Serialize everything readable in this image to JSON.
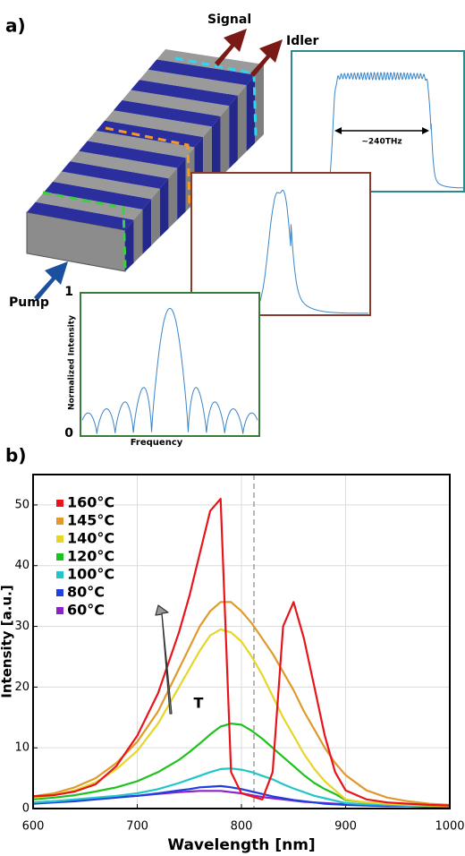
{
  "panel_a": {
    "label": "a)",
    "signal": "Signal",
    "idler": "Idler",
    "pump": "Pump",
    "bandwidth_label": "~240THz",
    "inset_ylabel": "Normalized Intensity",
    "inset_xlabel": "Frequency",
    "inset_ytick_top": "1",
    "inset_ytick_bottom": "0"
  },
  "panel_b_label": "b)",
  "chart_data": {
    "type": "line",
    "xlabel": "Wavelength [nm]",
    "ylabel": "Intensity [a.u.]",
    "x": [
      600,
      620,
      640,
      660,
      680,
      700,
      720,
      740,
      750,
      760,
      770,
      780,
      790,
      800,
      810,
      820,
      830,
      840,
      850,
      860,
      870,
      880,
      890,
      900,
      920,
      940,
      960,
      980,
      1000
    ],
    "series": [
      {
        "name": "160°C",
        "color": "#e8141b",
        "values": [
          2,
          2.2,
          2.8,
          4,
          7,
          12,
          19,
          29,
          35,
          42,
          49,
          51,
          6,
          2.5,
          2,
          1.5,
          6,
          30,
          34,
          28,
          20,
          12,
          6,
          3,
          1.5,
          1,
          0.8,
          0.6,
          0.5
        ]
      },
      {
        "name": "145°C",
        "color": "#e09a2c",
        "values": [
          2,
          2.5,
          3.5,
          5,
          7.5,
          11,
          16,
          23,
          26.5,
          30,
          32.5,
          34,
          34,
          32.5,
          30.5,
          28,
          25.5,
          22.5,
          19.5,
          16,
          13,
          10,
          7.5,
          5.5,
          3,
          1.8,
          1.2,
          0.8,
          0.6
        ]
      },
      {
        "name": "140°C",
        "color": "#e6d62a",
        "values": [
          1.8,
          2.2,
          3,
          4.3,
          6.5,
          9.5,
          14,
          20,
          23,
          26,
          28.5,
          29.5,
          29,
          27.5,
          25,
          22,
          18.5,
          15,
          12,
          9,
          6.5,
          4.5,
          3,
          1.5,
          1,
          0.8,
          0.6,
          0.5,
          0.4
        ]
      },
      {
        "name": "120°C",
        "color": "#1ec21e",
        "values": [
          1.5,
          1.8,
          2.2,
          2.8,
          3.5,
          4.5,
          6,
          8,
          9.3,
          10.7,
          12.2,
          13.5,
          14,
          13.8,
          12.8,
          11.5,
          10,
          8.5,
          7,
          5.5,
          4.2,
          3.2,
          2.4,
          1.4,
          1,
          0.8,
          0.6,
          0.5,
          0.4
        ]
      },
      {
        "name": "100°C",
        "color": "#22c6c6",
        "values": [
          1,
          1.2,
          1.5,
          1.8,
          2.1,
          2.5,
          3.2,
          4.2,
          4.8,
          5.4,
          6,
          6.5,
          6.6,
          6.4,
          6,
          5.4,
          4.8,
          4,
          3.3,
          2.7,
          2.1,
          1.7,
          1.3,
          0.9,
          0.7,
          0.6,
          0.5,
          0.4,
          0.4
        ]
      },
      {
        "name": "80°C",
        "color": "#1f3fe0",
        "values": [
          0.8,
          1,
          1.2,
          1.5,
          1.8,
          2.1,
          2.5,
          3,
          3.2,
          3.5,
          3.6,
          3.7,
          3.5,
          3.2,
          2.8,
          2.4,
          2,
          1.7,
          1.4,
          1.2,
          1,
          0.8,
          0.7,
          0.6,
          0.5,
          0.4,
          0.4,
          0.3,
          0.3
        ]
      },
      {
        "name": "60°C",
        "color": "#8a22c8",
        "values": [
          1,
          1.2,
          1.4,
          1.6,
          1.9,
          2.1,
          2.4,
          2.7,
          2.8,
          2.9,
          2.9,
          2.9,
          2.7,
          2.5,
          2.2,
          1.9,
          1.7,
          1.5,
          1.3,
          1.1,
          1,
          0.9,
          0.8,
          0.7,
          0.6,
          0.5,
          0.5,
          0.4,
          0.4
        ]
      }
    ],
    "xlim": [
      600,
      1000
    ],
    "ylim": [
      0,
      55
    ],
    "xticks": [
      600,
      700,
      800,
      900,
      1000
    ],
    "yticks": [
      0,
      10,
      20,
      30,
      40,
      50
    ],
    "grid": true,
    "legend": "upper left",
    "reference_line_x": 812,
    "arrow_label": "T"
  }
}
